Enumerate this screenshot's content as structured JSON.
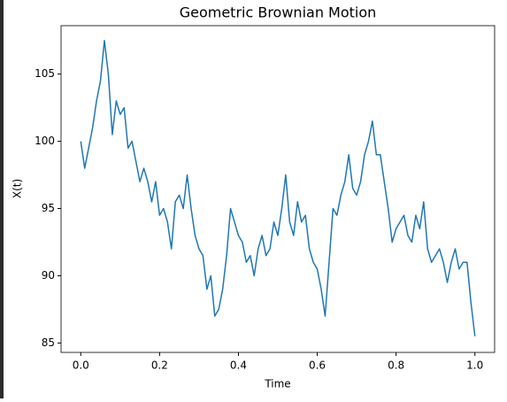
{
  "chart_data": {
    "type": "line",
    "title": "Geometric Brownian Motion",
    "xlabel": "Time",
    "ylabel": "X(t)",
    "x": [
      0,
      0.01,
      0.02,
      0.03,
      0.04,
      0.05,
      0.06,
      0.07,
      0.08,
      0.09,
      0.1,
      0.11,
      0.12,
      0.13,
      0.14,
      0.15,
      0.16,
      0.17,
      0.18,
      0.19,
      0.2,
      0.21,
      0.22,
      0.23,
      0.24,
      0.25,
      0.26,
      0.27,
      0.28,
      0.29,
      0.3,
      0.31,
      0.32,
      0.33,
      0.34,
      0.35,
      0.36,
      0.37,
      0.38,
      0.39,
      0.4,
      0.41,
      0.42,
      0.43,
      0.44,
      0.45,
      0.46,
      0.47,
      0.48,
      0.49,
      0.5,
      0.51,
      0.52,
      0.53,
      0.54,
      0.55,
      0.56,
      0.57,
      0.58,
      0.59,
      0.6,
      0.61,
      0.62,
      0.63,
      0.64,
      0.65,
      0.66,
      0.67,
      0.68,
      0.69,
      0.7,
      0.71,
      0.72,
      0.73,
      0.74,
      0.75,
      0.76,
      0.77,
      0.78,
      0.79,
      0.8,
      0.81,
      0.82,
      0.83,
      0.84,
      0.85,
      0.86,
      0.87,
      0.88,
      0.89,
      0.9,
      0.91,
      0.92,
      0.93,
      0.94,
      0.95,
      0.96,
      0.97,
      0.98,
      0.99,
      1.0
    ],
    "series": [
      {
        "color": "#1f77b4",
        "values": [
          100,
          98,
          99.5,
          101,
          103,
          104.5,
          107.5,
          105,
          100.5,
          103,
          102,
          102.5,
          99.5,
          100,
          98.5,
          97,
          98,
          97,
          95.5,
          97,
          94.5,
          95,
          94,
          92,
          95.5,
          96,
          95,
          97.5,
          95,
          93,
          92,
          91.5,
          89,
          90,
          87,
          87.5,
          89,
          91.5,
          95,
          94,
          93,
          92.5,
          91,
          91.5,
          90,
          92,
          93,
          91.5,
          92,
          94,
          93,
          95,
          97.5,
          94,
          93,
          95.5,
          94,
          94.5,
          92,
          91,
          90.5,
          89,
          87,
          91,
          95,
          94.5,
          96,
          97,
          99,
          96.5,
          96,
          97,
          99,
          100,
          101.5,
          99,
          99,
          97,
          95,
          92.5,
          93.5,
          94,
          94.5,
          93,
          92.5,
          94.5,
          93.5,
          95.5,
          92,
          91,
          91.5,
          92,
          91,
          89.5,
          91,
          92,
          90.5,
          91,
          91,
          88,
          85.5
        ]
      }
    ],
    "xlim": [
      -0.05,
      1.05
    ],
    "ylim": [
      84.3,
      108.6
    ],
    "xticks": [
      {
        "value": 0,
        "label": "0.0"
      },
      0.2,
      0.4,
      0.6,
      0.8,
      {
        "value": 1,
        "label": "1.0"
      }
    ],
    "yticks": [
      85,
      90,
      95,
      100,
      105
    ]
  }
}
